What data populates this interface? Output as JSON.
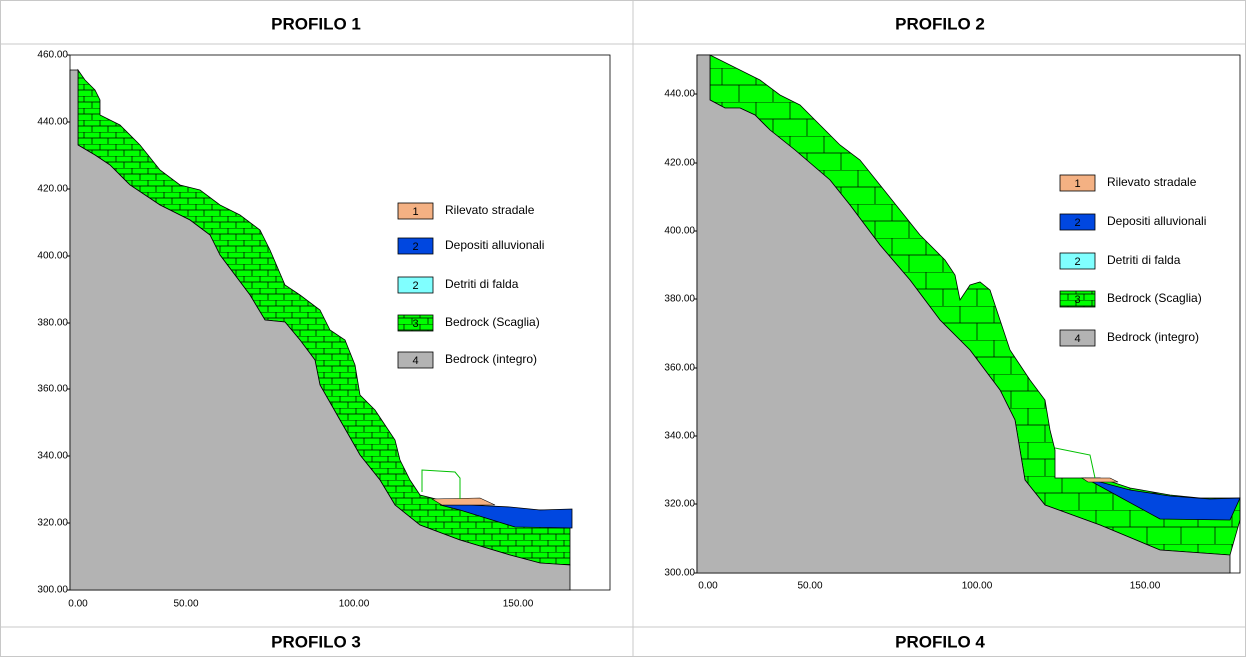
{
  "table": {
    "headers": [
      "PROFILO 1",
      "PROFILO 2"
    ],
    "footers": [
      "PROFILO 3",
      "PROFILO 4"
    ]
  },
  "panels": [
    {
      "y_ticks": [
        "460.00",
        "440.00",
        "420.00",
        "400.00",
        "380.00",
        "360.00",
        "340.00",
        "320.00",
        "300.00"
      ],
      "x_ticks": [
        "0.00",
        "50.00",
        "100.00",
        "150.00"
      ],
      "legend": [
        {
          "code": "1",
          "label": "Rilevato stradale"
        },
        {
          "code": "2",
          "label": "Depositi alluvionali"
        },
        {
          "code": "2",
          "label": "Detriti di falda"
        },
        {
          "code": "3",
          "label": "Bedrock (Scaglia)"
        },
        {
          "code": "4",
          "label": "Bedrock (integro)"
        }
      ]
    },
    {
      "y_ticks": [
        "440.00",
        "420.00",
        "400.00",
        "380.00",
        "360.00",
        "340.00",
        "320.00",
        "300.00"
      ],
      "x_ticks": [
        "0.00",
        "50.00",
        "100.00",
        "150.00"
      ],
      "legend": [
        {
          "code": "1",
          "label": "Rilevato stradale"
        },
        {
          "code": "2",
          "label": "Depositi alluvionali"
        },
        {
          "code": "2",
          "label": "Detriti di falda"
        },
        {
          "code": "3",
          "label": "Bedrock (Scaglia)"
        },
        {
          "code": "4",
          "label": "Bedrock (integro)"
        }
      ]
    }
  ]
}
